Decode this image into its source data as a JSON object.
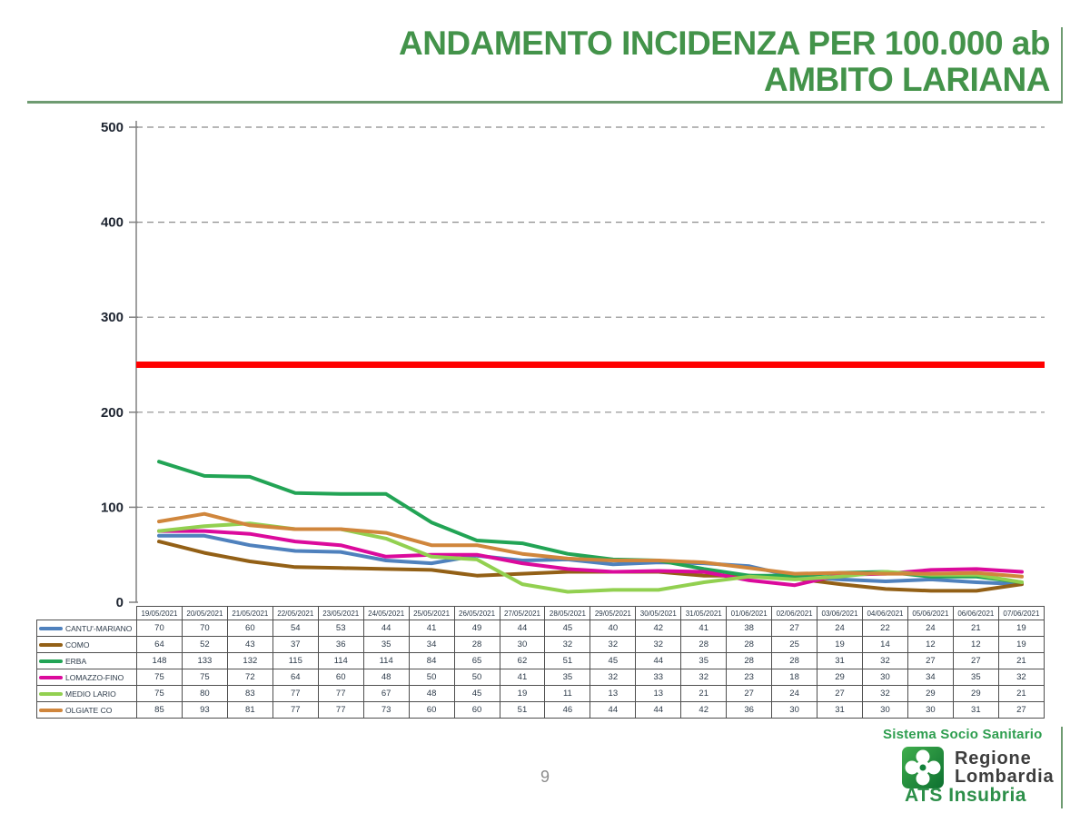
{
  "title": {
    "line1": "ANDAMENTO INCIDENZA PER 100.000 ab",
    "line2": "AMBITO LARIANA"
  },
  "page_number": "9",
  "footer": {
    "sistema": "Sistema Socio Sanitario",
    "regione_line1": "Regione",
    "regione_line2": "Lombardia",
    "ats": "ATS Insubria"
  },
  "colors": {
    "title_green": "#43934A",
    "rule_green": "#6E9B71",
    "axis_gray": "#808080",
    "gridline_gray": "#8c8c8c",
    "threshold_red": "#FF0000",
    "table_border": "#4f4f4f",
    "table_text": "#2c3a49"
  },
  "chart_data": {
    "type": "line",
    "title": "ANDAMENTO INCIDENZA PER 100.000 ab - AMBITO LARIANA",
    "xlabel": "",
    "ylabel": "",
    "ylim": [
      0,
      500
    ],
    "yticks": [
      0,
      100,
      200,
      300,
      400,
      500
    ],
    "grid": "horizontal dashed",
    "legend_position": "data-table left column",
    "threshold_line": {
      "value": 250,
      "color": "#FF0000"
    },
    "categories": [
      "19/05/2021",
      "20/05/2021",
      "21/05/2021",
      "22/05/2021",
      "23/05/2021",
      "24/05/2021",
      "25/05/2021",
      "26/05/2021",
      "27/05/2021",
      "28/05/2021",
      "29/05/2021",
      "30/05/2021",
      "31/05/2021",
      "01/06/2021",
      "02/06/2021",
      "03/06/2021",
      "04/06/2021",
      "05/06/2021",
      "06/06/2021",
      "07/06/2021"
    ],
    "series": [
      {
        "name": "CANTU'-MARIANO",
        "color": "#4F81BD",
        "values": [
          70,
          70,
          60,
          54,
          53,
          44,
          41,
          49,
          44,
          45,
          40,
          42,
          41,
          38,
          27,
          24,
          22,
          24,
          21,
          19
        ]
      },
      {
        "name": "COMO",
        "color": "#936016",
        "values": [
          64,
          52,
          43,
          37,
          36,
          35,
          34,
          28,
          30,
          32,
          32,
          32,
          28,
          28,
          25,
          19,
          14,
          12,
          12,
          19
        ]
      },
      {
        "name": "ERBA",
        "color": "#22A455",
        "values": [
          148,
          133,
          132,
          115,
          114,
          114,
          84,
          65,
          62,
          51,
          45,
          44,
          35,
          28,
          28,
          31,
          32,
          27,
          27,
          21
        ]
      },
      {
        "name": "LOMAZZO-FINO",
        "color": "#DB0A9C",
        "values": [
          75,
          75,
          72,
          64,
          60,
          48,
          50,
          50,
          41,
          35,
          32,
          33,
          32,
          23,
          18,
          29,
          30,
          34,
          35,
          32
        ]
      },
      {
        "name": "MEDIO LARIO",
        "color": "#92D050",
        "values": [
          75,
          80,
          83,
          77,
          77,
          67,
          48,
          45,
          19,
          11,
          13,
          13,
          21,
          27,
          24,
          27,
          32,
          29,
          29,
          21
        ]
      },
      {
        "name": "OLGIATE CO",
        "color": "#D0863C",
        "values": [
          85,
          93,
          81,
          77,
          77,
          73,
          60,
          60,
          51,
          46,
          44,
          44,
          42,
          36,
          30,
          31,
          30,
          30,
          31,
          27
        ]
      }
    ]
  }
}
